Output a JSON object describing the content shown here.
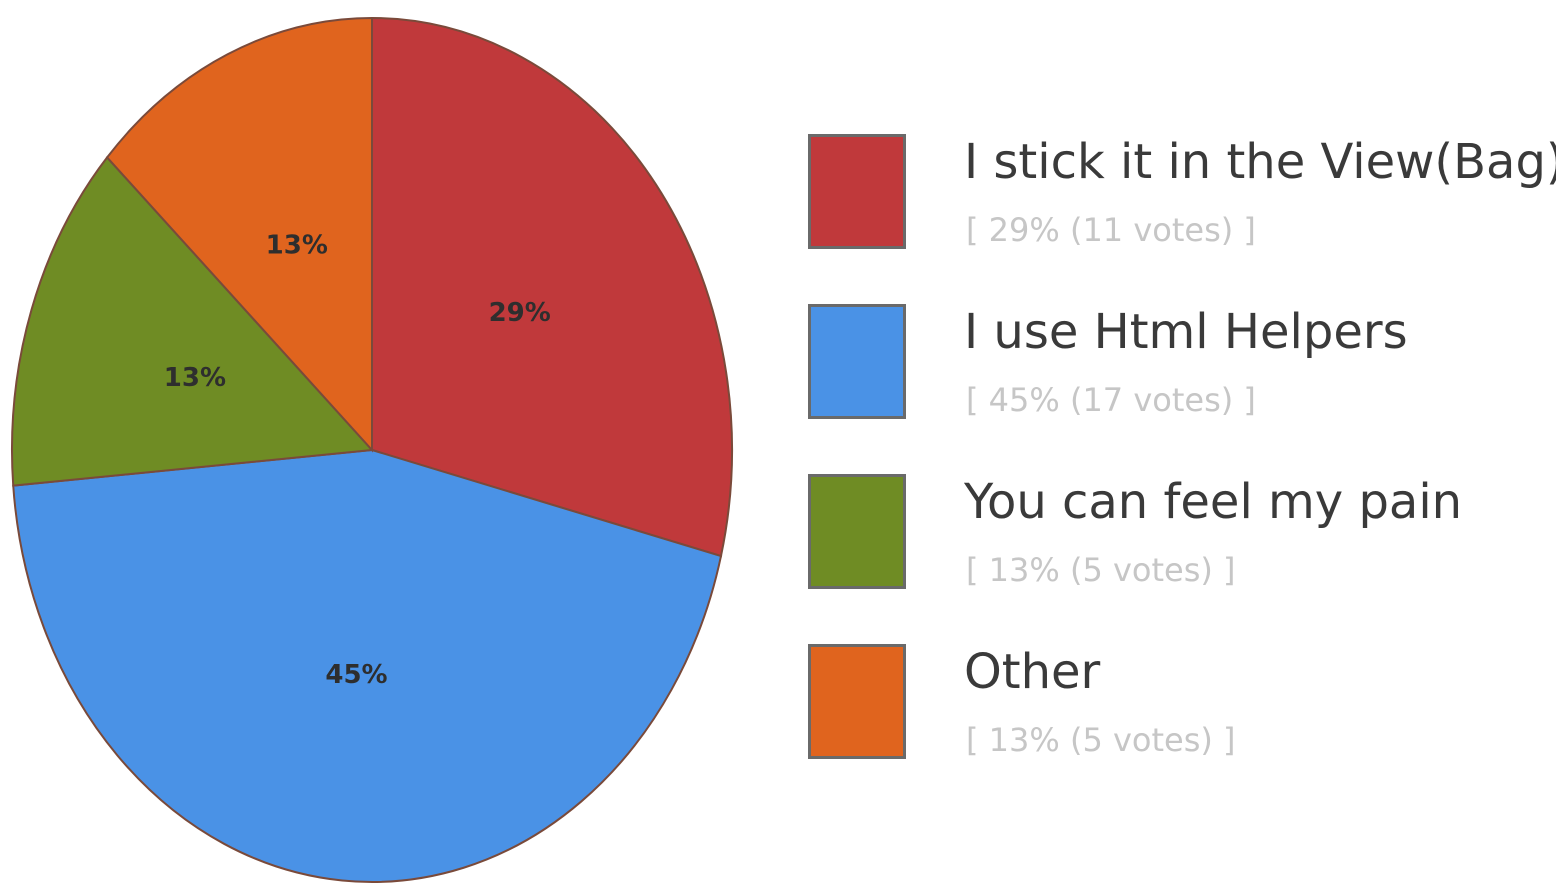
{
  "chart_data": {
    "type": "pie",
    "slices": [
      {
        "label": "I stick it in the View(Bag)",
        "percent_label": "29%",
        "detail": "[ 29% (11 votes) ]",
        "votes": 11,
        "color": "#c0393b"
      },
      {
        "label": "I use Html Helpers",
        "percent_label": "45%",
        "detail": "[ 45% (17 votes) ]",
        "votes": 17,
        "color": "#4a92e6"
      },
      {
        "label": "You can feel my pain",
        "percent_label": "13%",
        "detail": "[ 13% (5 votes) ]",
        "votes": 5,
        "color": "#6f8c24"
      },
      {
        "label": "Other",
        "percent_label": "13%",
        "detail": "[ 13% (5 votes) ]",
        "votes": 5,
        "color": "#e0641e"
      }
    ],
    "legend_position": "right"
  }
}
